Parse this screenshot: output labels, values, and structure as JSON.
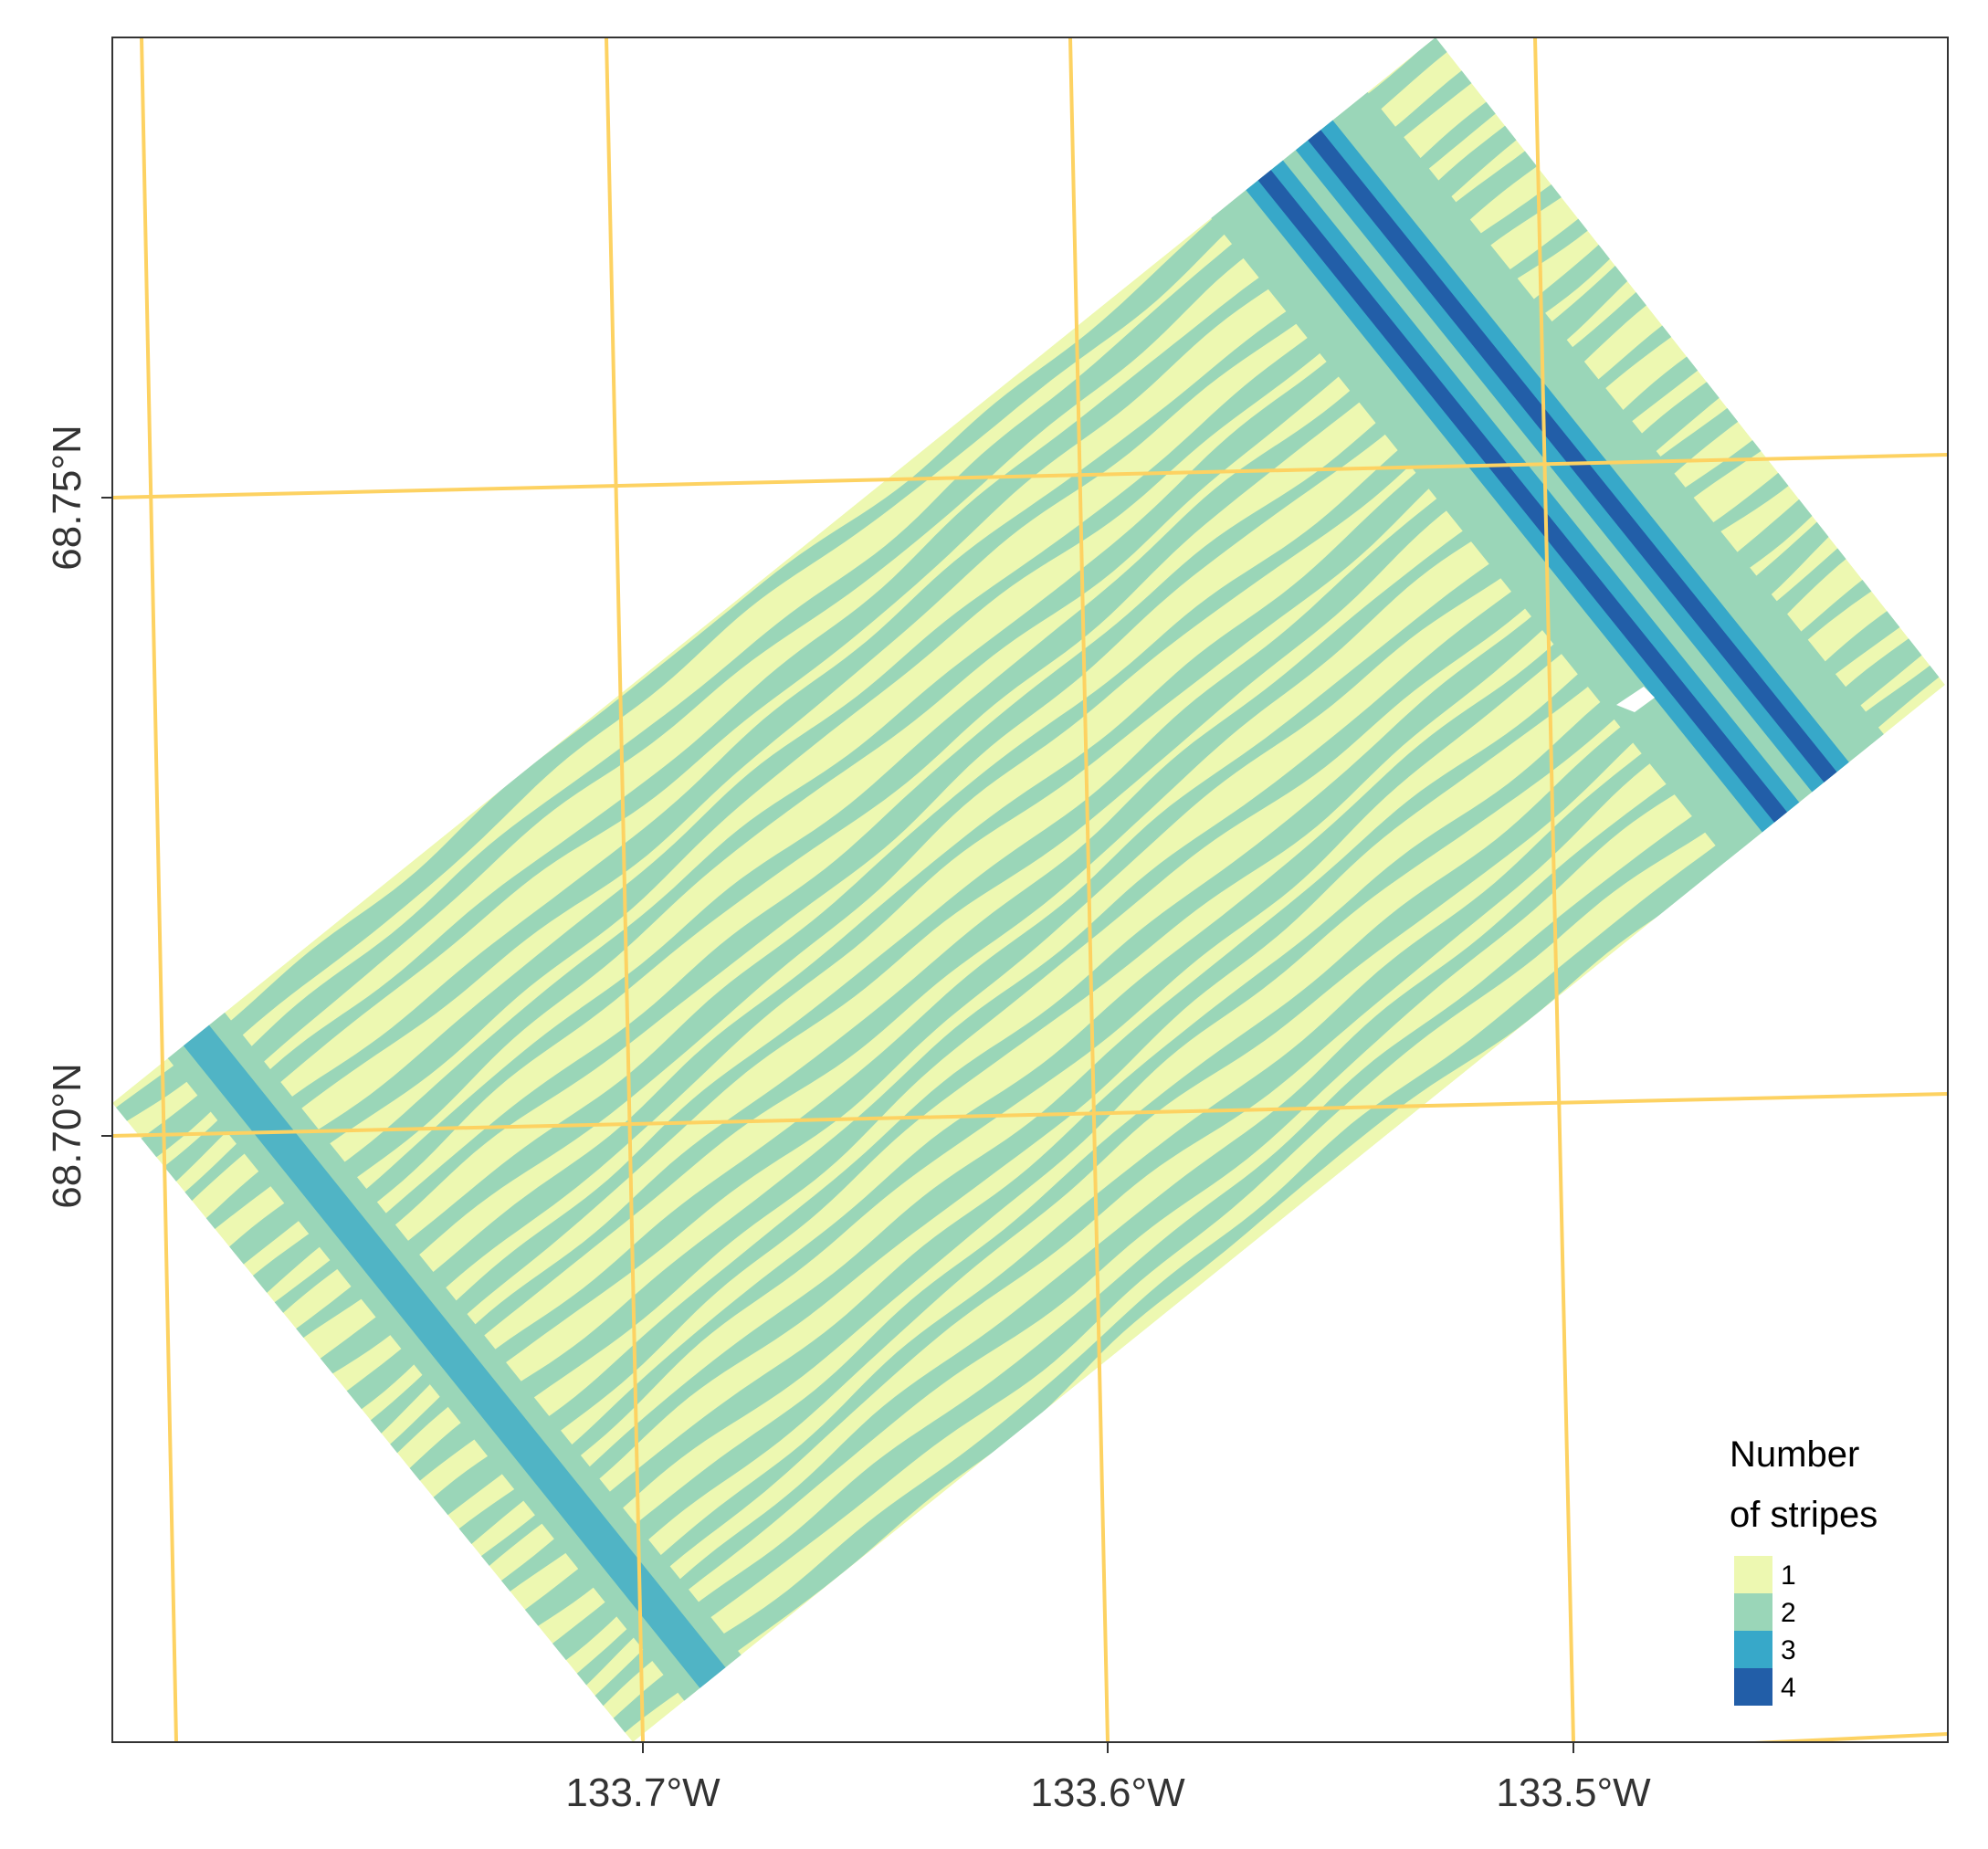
{
  "map": {
    "x_axis": {
      "unit": "longitude",
      "ticks": [
        {
          "value": -133.7,
          "label": "133.7°W"
        },
        {
          "value": -133.6,
          "label": "133.6°W"
        },
        {
          "value": -133.5,
          "label": "133.5°W"
        }
      ]
    },
    "y_axis": {
      "unit": "latitude",
      "ticks": [
        {
          "value": 68.75,
          "label": "68.75°N"
        },
        {
          "value": 68.7,
          "label": "68.70°N"
        }
      ]
    },
    "graticule_color": "#FDD262",
    "layer": {
      "type": "raster",
      "variable": "number of overlapping stripes",
      "classes": [
        1,
        2,
        3,
        4
      ]
    },
    "legend": {
      "title_line1": "Number",
      "title_line2": "of stripes",
      "position": "bottom-right",
      "items": [
        {
          "label": "1",
          "color": "#EDF8B1"
        },
        {
          "label": "2",
          "color": "#9AD6B8"
        },
        {
          "label": "3",
          "color": "#37A8C9"
        },
        {
          "label": "4",
          "color": "#225EA8"
        }
      ]
    }
  }
}
